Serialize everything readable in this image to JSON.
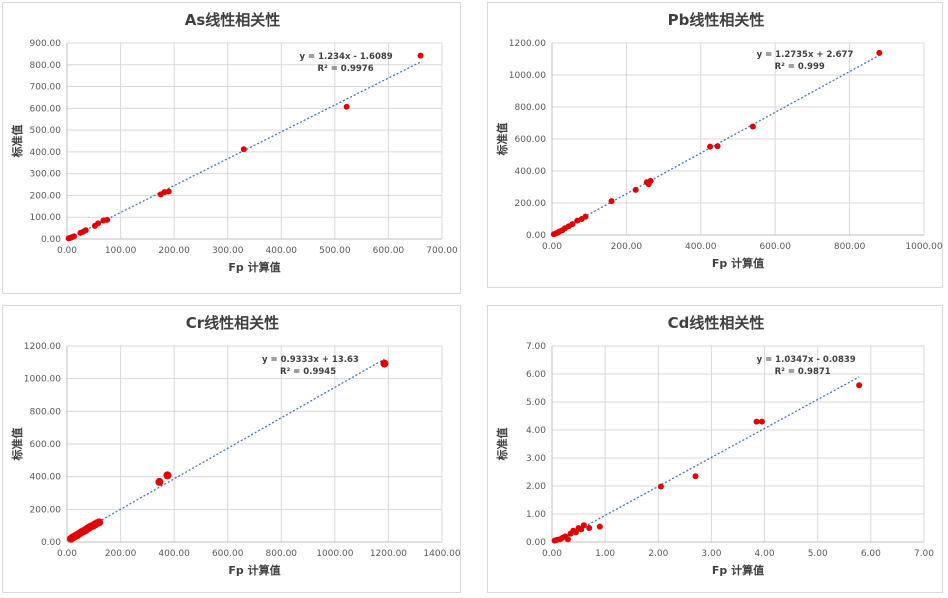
{
  "chart_data": [
    {
      "type": "scatter",
      "title": "As线性相关性",
      "xlabel": "Fp 计算值",
      "ylabel": "标准值",
      "xlim": [
        0,
        700
      ],
      "ylim": [
        0,
        900
      ],
      "xticks": [
        "0.00",
        "100.00",
        "200.00",
        "300.00",
        "400.00",
        "500.00",
        "600.00",
        "700.00"
      ],
      "yticks": [
        "0.00",
        "100.00",
        "200.00",
        "300.00",
        "400.00",
        "500.00",
        "600.00",
        "700.00",
        "800.00",
        "900.00"
      ],
      "trendline": {
        "slope": 1.234,
        "intercept": -1.6089
      },
      "equation": "y = 1.234x - 1.6089",
      "r2": "R² = 0.9976",
      "points": [
        [
          3,
          3
        ],
        [
          6,
          5
        ],
        [
          9,
          8
        ],
        [
          13,
          12
        ],
        [
          25,
          28
        ],
        [
          30,
          33
        ],
        [
          35,
          40
        ],
        [
          52,
          60
        ],
        [
          58,
          72
        ],
        [
          68,
          85
        ],
        [
          75,
          88
        ],
        [
          175,
          205
        ],
        [
          182,
          215
        ],
        [
          190,
          218
        ],
        [
          330,
          412
        ],
        [
          522,
          607
        ],
        [
          660,
          842
        ]
      ]
    },
    {
      "type": "scatter",
      "title": "Pb线性相关性",
      "xlabel": "Fp 计算值",
      "ylabel": "标准值",
      "xlim": [
        0,
        1000
      ],
      "ylim": [
        0,
        1200
      ],
      "xticks": [
        "0.00",
        "200.00",
        "400.00",
        "600.00",
        "800.00",
        "1000.00"
      ],
      "yticks": [
        "0.00",
        "200.00",
        "400.00",
        "600.00",
        "800.00",
        "1000.00",
        "1200.00"
      ],
      "trendline": {
        "slope": 1.2735,
        "intercept": 2.677
      },
      "equation": "y = 1.2735x + 2.677",
      "r2": "R² = 0.999",
      "points": [
        [
          5,
          5
        ],
        [
          10,
          10
        ],
        [
          15,
          15
        ],
        [
          20,
          22
        ],
        [
          28,
          30
        ],
        [
          35,
          42
        ],
        [
          45,
          55
        ],
        [
          55,
          68
        ],
        [
          68,
          90
        ],
        [
          80,
          100
        ],
        [
          90,
          115
        ],
        [
          160,
          212
        ],
        [
          225,
          282
        ],
        [
          255,
          330
        ],
        [
          260,
          318
        ],
        [
          265,
          338
        ],
        [
          425,
          552
        ],
        [
          445,
          555
        ],
        [
          540,
          678
        ],
        [
          880,
          1138
        ]
      ]
    },
    {
      "type": "scatter",
      "title": "Cr线性相关性",
      "xlabel": "Fp 计算值",
      "ylabel": "标准值",
      "xlim": [
        0,
        1400
      ],
      "ylim": [
        0,
        1200
      ],
      "xticks": [
        "0.00",
        "200.00",
        "400.00",
        "600.00",
        "800.00",
        "1000.00",
        "1200.00",
        "1400.00"
      ],
      "yticks": [
        "0.00",
        "200.00",
        "400.00",
        "600.00",
        "800.00",
        "1000.00",
        "1200.00"
      ],
      "trendline": {
        "slope": 0.9333,
        "intercept": 13.63
      },
      "equation": "y = 0.9333x + 13.63",
      "r2": "R² = 0.9945",
      "points": [
        [
          15,
          20
        ],
        [
          22,
          28
        ],
        [
          30,
          35
        ],
        [
          38,
          42
        ],
        [
          45,
          50
        ],
        [
          52,
          58
        ],
        [
          60,
          65
        ],
        [
          68,
          72
        ],
        [
          75,
          80
        ],
        [
          82,
          88
        ],
        [
          90,
          95
        ],
        [
          98,
          100
        ],
        [
          105,
          108
        ],
        [
          112,
          115
        ],
        [
          120,
          120
        ],
        [
          345,
          368
        ],
        [
          375,
          408
        ],
        [
          1185,
          1092
        ]
      ]
    },
    {
      "type": "scatter",
      "title": "Cd线性相关性",
      "xlabel": "Fp 计算值",
      "ylabel": "标准值",
      "xlim": [
        0,
        7
      ],
      "ylim": [
        0,
        7
      ],
      "xticks": [
        "0.00",
        "1.00",
        "2.00",
        "3.00",
        "4.00",
        "5.00",
        "6.00",
        "7.00"
      ],
      "yticks": [
        "0.00",
        "1.00",
        "2.00",
        "3.00",
        "4.00",
        "5.00",
        "6.00",
        "7.00"
      ],
      "trendline": {
        "slope": 1.0347,
        "intercept": -0.0839
      },
      "equation": "y = 1.0347x - 0.0839",
      "r2": "R² = 0.9871",
      "points": [
        [
          0.05,
          0.05
        ],
        [
          0.1,
          0.08
        ],
        [
          0.15,
          0.1
        ],
        [
          0.2,
          0.15
        ],
        [
          0.25,
          0.2
        ],
        [
          0.3,
          0.1
        ],
        [
          0.35,
          0.3
        ],
        [
          0.4,
          0.4
        ],
        [
          0.45,
          0.35
        ],
        [
          0.5,
          0.5
        ],
        [
          0.55,
          0.45
        ],
        [
          0.6,
          0.6
        ],
        [
          0.7,
          0.5
        ],
        [
          0.9,
          0.55
        ],
        [
          2.05,
          1.98
        ],
        [
          2.7,
          2.35
        ],
        [
          3.85,
          4.3
        ],
        [
          3.95,
          4.3
        ],
        [
          5.78,
          5.6
        ]
      ]
    }
  ],
  "colors": {
    "marker": "#e30000",
    "trendline": "#4472c4",
    "grid": "#d9d9d9",
    "axis": "#bfbfbf"
  }
}
